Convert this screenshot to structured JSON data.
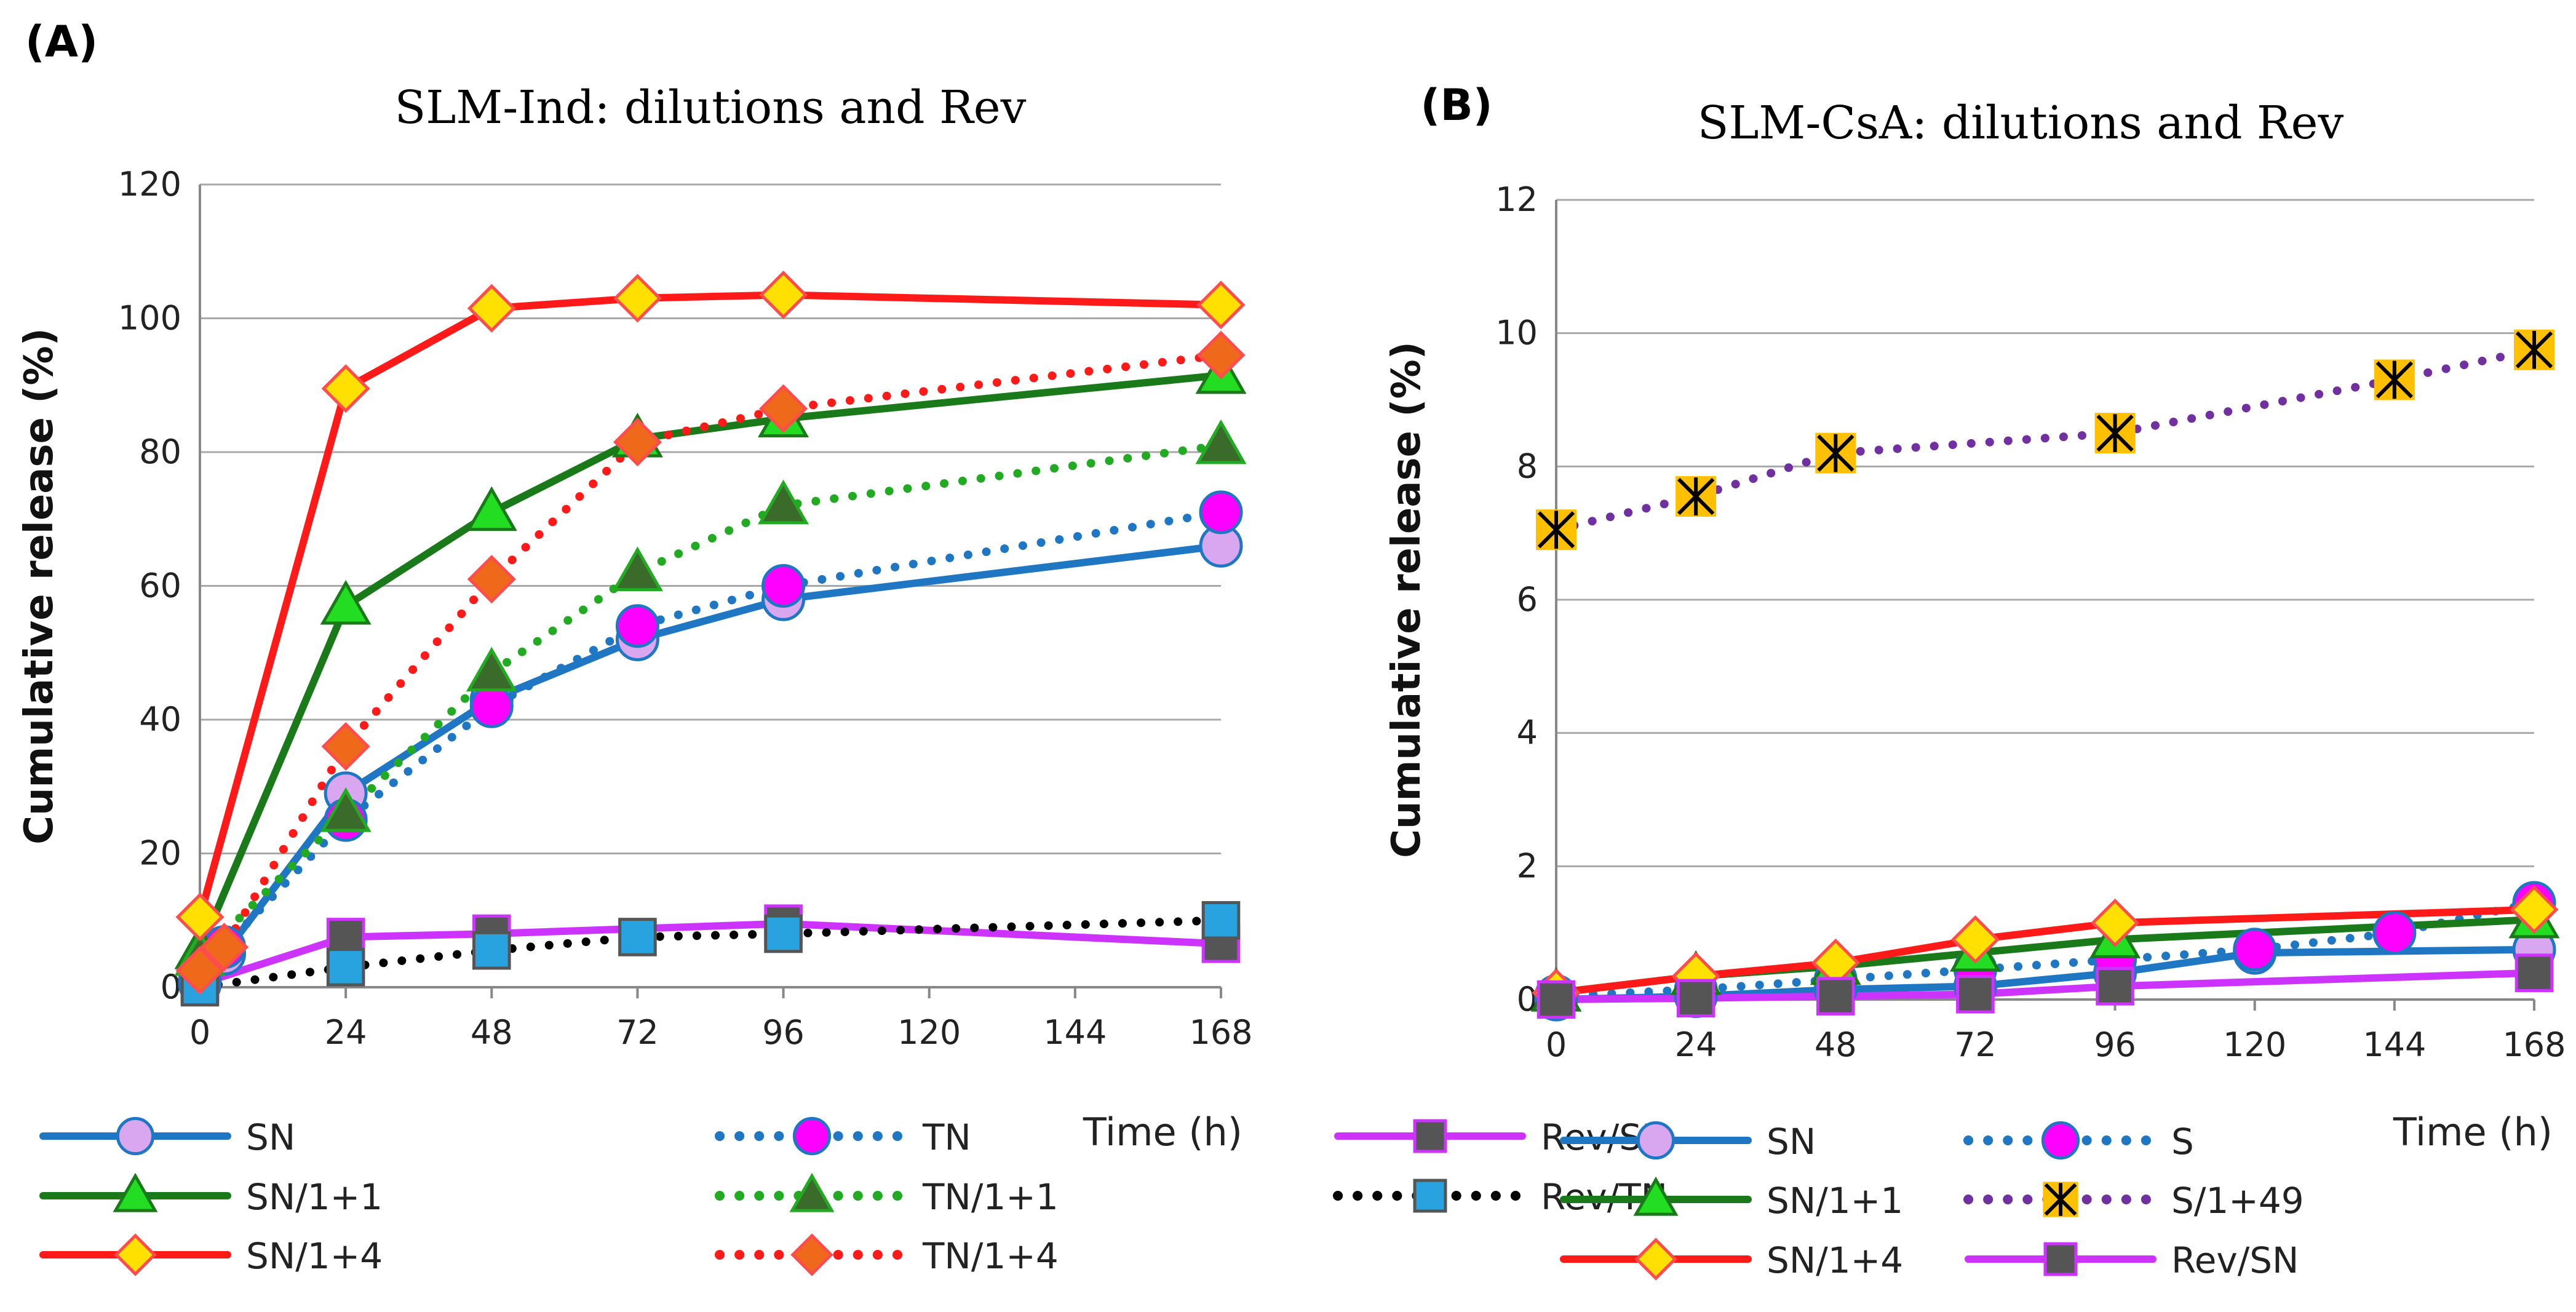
{
  "chart_data": [
    {
      "type": "line",
      "panel_label": "(A)",
      "title": "SLM-Ind: dilutions and Rev",
      "xlabel": "Time (h)",
      "ylabel": "Cumulative  release (%)",
      "xlim": [
        0,
        168
      ],
      "ylim": [
        0,
        120
      ],
      "xticks": [
        0,
        24,
        48,
        72,
        96,
        120,
        144,
        168
      ],
      "yticks": [
        0,
        20,
        40,
        60,
        80,
        100,
        120
      ],
      "grid": "horizontal",
      "series": [
        {
          "name": "SN",
          "color": "#1f77c4",
          "line": "solid",
          "marker": "circle",
          "marker_fill": "#d9a6f0",
          "marker_stroke": "#1f77c4",
          "x": [
            0,
            4,
            24,
            48,
            72,
            96,
            168
          ],
          "values": [
            0.5,
            5,
            29,
            43,
            52,
            58,
            66
          ]
        },
        {
          "name": "TN",
          "color": "#1f77c4",
          "line": "dotted",
          "marker": "circle",
          "marker_fill": "#ff00ff",
          "marker_stroke": "#1f77c4",
          "x": [
            0,
            4,
            24,
            48,
            72,
            96,
            168
          ],
          "values": [
            1,
            6,
            25,
            42,
            54,
            60,
            71
          ]
        },
        {
          "name": "Rev/SN",
          "color": "#cc33ff",
          "line": "solid",
          "marker": "square",
          "marker_fill": "#555555",
          "marker_stroke": "#cc33ff",
          "x": [
            0,
            24,
            48,
            96,
            168
          ],
          "values": [
            0.5,
            7.5,
            8,
            9.5,
            6.5
          ]
        },
        {
          "name": "SN/1+1",
          "color": "#1a7a1a",
          "line": "solid",
          "marker": "triangle",
          "marker_fill": "#22dd22",
          "marker_stroke": "#1a7a1a",
          "x": [
            0,
            24,
            48,
            72,
            96,
            168
          ],
          "values": [
            5.5,
            57,
            71,
            82,
            85,
            91.5
          ]
        },
        {
          "name": "TN/1+1",
          "color": "#22aa22",
          "line": "dotted",
          "marker": "triangle",
          "marker_fill": "#3a6b2a",
          "marker_stroke": "#22aa22",
          "x": [
            0,
            24,
            48,
            72,
            96,
            168
          ],
          "values": [
            4.5,
            26,
            47,
            62,
            72,
            81
          ]
        },
        {
          "name": "Rev/TN",
          "color": "#000000",
          "line": "dotted",
          "marker": "square",
          "marker_fill": "#29a3e0",
          "marker_stroke": "#555555",
          "x": [
            0,
            24,
            48,
            72,
            96,
            168
          ],
          "values": [
            0,
            3,
            5.5,
            7.5,
            8,
            10
          ]
        },
        {
          "name": "SN/1+4",
          "color": "#ff1a1a",
          "line": "solid",
          "marker": "diamond",
          "marker_fill": "#ffe000",
          "marker_stroke": "#ff4d4d",
          "x": [
            0,
            24,
            48,
            72,
            96,
            168
          ],
          "values": [
            10.5,
            89.5,
            101.5,
            103,
            103.5,
            102
          ]
        },
        {
          "name": "TN/1+4",
          "color": "#ff1a1a",
          "line": "dotted",
          "marker": "diamond",
          "marker_fill": "#ee6a1a",
          "marker_stroke": "#ff4d4d",
          "x": [
            0,
            4,
            24,
            48,
            72,
            96,
            168
          ],
          "values": [
            2.5,
            6,
            36,
            61,
            81.5,
            86.5,
            94.5
          ]
        }
      ]
    },
    {
      "type": "line",
      "panel_label": "(B)",
      "title": "SLM-CsA: dilutions and Rev",
      "xlabel": "Time (h)",
      "ylabel": "Cumulative  release (%)",
      "xlim": [
        0,
        168
      ],
      "ylim": [
        0,
        12
      ],
      "xticks": [
        0,
        24,
        48,
        72,
        96,
        120,
        144,
        168
      ],
      "yticks": [
        0,
        2,
        4,
        6,
        8,
        10,
        12
      ],
      "grid": "horizontal",
      "series": [
        {
          "name": "SN",
          "color": "#1f77c4",
          "line": "solid",
          "marker": "circle",
          "marker_fill": "#d9a6f0",
          "marker_stroke": "#1f77c4",
          "x": [
            0,
            24,
            48,
            72,
            96,
            120,
            168
          ],
          "values": [
            0,
            0.05,
            0.15,
            0.2,
            0.4,
            0.7,
            0.75
          ]
        },
        {
          "name": "S",
          "color": "#1f77c4",
          "line": "dotted",
          "marker": "circle",
          "marker_fill": "#ff00ff",
          "marker_stroke": "#1f77c4",
          "x": [
            0,
            24,
            48,
            72,
            96,
            120,
            144,
            168
          ],
          "values": [
            0.05,
            0.15,
            0.3,
            0.45,
            0.6,
            0.75,
            1.0,
            1.45
          ]
        },
        {
          "name": "SN/1+1",
          "color": "#1a7a1a",
          "line": "solid",
          "marker": "triangle",
          "marker_fill": "#22dd22",
          "marker_stroke": "#1a7a1a",
          "x": [
            0,
            24,
            48,
            72,
            96,
            168
          ],
          "values": [
            0.1,
            0.35,
            0.5,
            0.7,
            0.9,
            1.2
          ]
        },
        {
          "name": "S/1+49",
          "color": "#7030a0",
          "line": "dotted",
          "marker": "asterisk-square",
          "marker_fill": "#ffc000",
          "marker_stroke": "#000000",
          "x": [
            0,
            24,
            48,
            96,
            144,
            168
          ],
          "values": [
            7.05,
            7.55,
            8.2,
            8.5,
            9.3,
            9.75
          ]
        },
        {
          "name": "SN/1+4",
          "color": "#ff1a1a",
          "line": "solid",
          "marker": "diamond",
          "marker_fill": "#ffe000",
          "marker_stroke": "#ff4d4d",
          "x": [
            0,
            24,
            48,
            72,
            96,
            168
          ],
          "values": [
            0.1,
            0.35,
            0.55,
            0.9,
            1.15,
            1.35
          ]
        },
        {
          "name": "Rev/SN",
          "color": "#cc33ff",
          "line": "solid",
          "marker": "square",
          "marker_fill": "#555555",
          "marker_stroke": "#cc33ff",
          "x": [
            0,
            24,
            48,
            72,
            96,
            168
          ],
          "values": [
            0,
            0.02,
            0.05,
            0.08,
            0.2,
            0.4
          ]
        }
      ]
    }
  ]
}
